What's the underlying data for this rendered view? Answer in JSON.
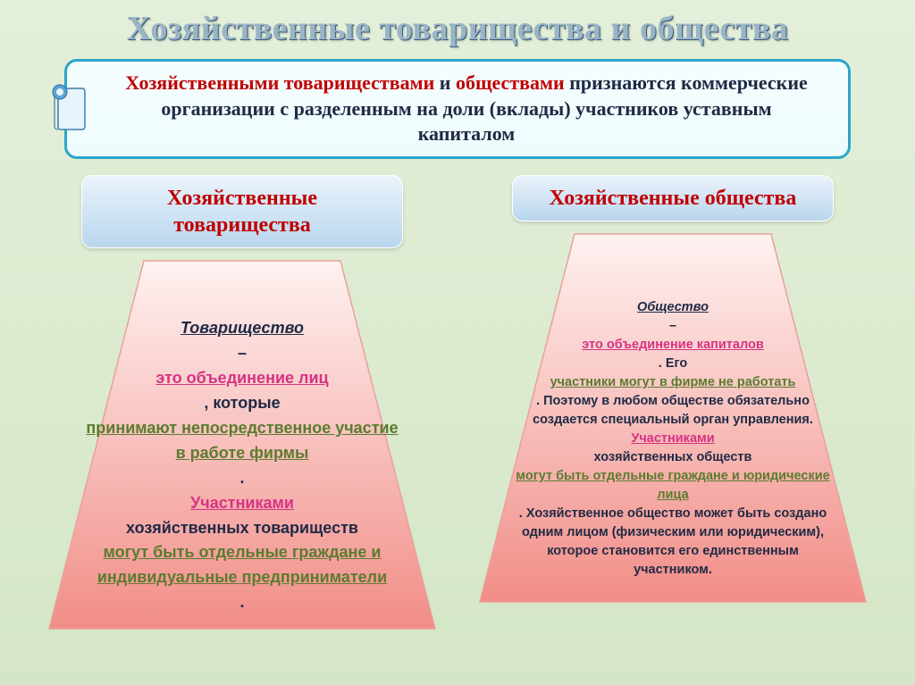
{
  "background_gradient": {
    "from": "#e4efda",
    "to": "#d5e6c6"
  },
  "title": {
    "text": "Хозяйственные товарищества и общества",
    "color": "#9ab5c6",
    "shadow_color": "#3a5a7a",
    "fontsize": 38
  },
  "definition": {
    "border_color": "#2aa6c9",
    "bg_from": "#f5fdfe",
    "bg_to": "#eefcfd",
    "scroll_colors": {
      "paper": "#e8f4fb",
      "edge": "#3a7fae",
      "roll": "#5ba3d0"
    },
    "parts": [
      {
        "text": "Хозяйственными товариществами",
        "color": "#c00000"
      },
      {
        "text": " и ",
        "color": "#1f2a44"
      },
      {
        "text": "обществами",
        "color": "#c00000"
      },
      {
        "text": " признаются коммерческие организации с разделенным на доли (вклады) участников уставным капиталом",
        "color": "#1f2a44"
      }
    ]
  },
  "header_style": {
    "bg_from": "#eaf3fb",
    "bg_to": "#b9d6ee",
    "text_color": "#c00000"
  },
  "trapezoid_style": {
    "fill_from": "#fef2f1",
    "fill_to": "#f28d87",
    "stroke": "#e8a09a"
  },
  "left": {
    "header": "Хозяйственные товарищества",
    "body": {
      "term_label": "Товарищество",
      "term_color": "#1f2a44",
      "dash": " – ",
      "p1a": "это объединение лиц",
      "p1a_color": "#d63384",
      "p1b": ", которые ",
      "p1b_color": "#1f2a44",
      "p1c": "принимают непосредственное участие в работе фирмы",
      "p1c_color": "#5b7c2f",
      "p1d": ". ",
      "p2a": "Участниками",
      "p2a_color": "#d63384",
      "p2b": " хозяйственных товариществ ",
      "p2b_color": "#1f2a44",
      "p2c": "могут быть отдельные граждане и индивидуальные предприниматели",
      "p2c_color": "#5b7c2f",
      "p2d": "."
    }
  },
  "right": {
    "header": "Хозяйственные общества",
    "body": {
      "term_label": "Общество",
      "term_color": "#1f2a44",
      "dash": " – ",
      "p1a": "это объединение капиталов",
      "p1a_color": "#d63384",
      "p1b": ". Его ",
      "p1c": "участники могут в фирме не работать",
      "p1c_color": "#5b7c2f",
      "p1d": ". Поэтому в любом обществе обязательно создается специальный орган управления. ",
      "p2a": "Участниками",
      "p2a_color": "#d63384",
      "p2b": " хозяйственных обществ ",
      "p2c": "могут быть отдельные граждане и юридические лица",
      "p2c_color": "#5b7c2f",
      "p2d": ". Хозяйственное общество может быть создано одним лицом (физическим или юридическим), которое становится его единственным участником."
    }
  }
}
